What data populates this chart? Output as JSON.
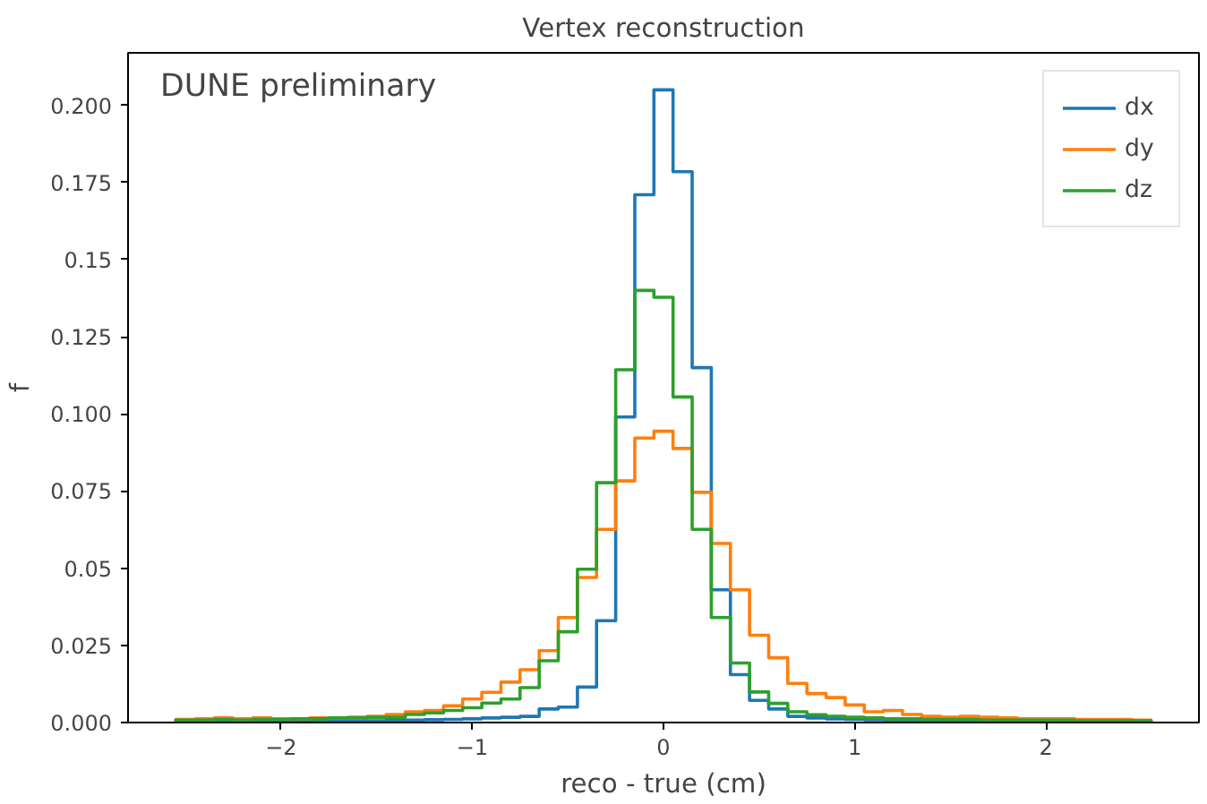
{
  "chart_data": {
    "type": "histogram",
    "title": "Vertex reconstruction",
    "xlabel": "reco - true (cm)",
    "ylabel": "f",
    "annotations": [
      "DUNE preliminary"
    ],
    "bins": [
      -2.55,
      -2.45,
      -2.35,
      -2.25,
      -2.15,
      -2.05,
      -1.95,
      -1.85,
      -1.75,
      -1.65,
      -1.55,
      -1.45,
      -1.35,
      -1.25,
      -1.15,
      -1.05,
      -0.95,
      -0.85,
      -0.75,
      -0.65,
      -0.55,
      -0.45,
      -0.35,
      -0.25,
      -0.15,
      -0.05,
      0.05,
      0.15,
      0.25,
      0.35,
      0.45,
      0.55,
      0.65,
      0.75,
      0.85,
      0.95,
      1.05,
      1.15,
      1.25,
      1.35,
      1.45,
      1.55,
      1.65,
      1.75,
      1.85,
      1.95,
      2.05,
      2.15,
      2.25,
      2.35,
      2.45,
      2.55
    ],
    "series": [
      {
        "name": "dx",
        "color": "#1f77b4",
        "values": [
          0.0002,
          0.0002,
          0.0002,
          0.0003,
          0.0003,
          0.0003,
          0.0004,
          0.0004,
          0.0005,
          0.0005,
          0.0006,
          0.0007,
          0.0008,
          0.0009,
          0.001,
          0.0012,
          0.0015,
          0.0017,
          0.002,
          0.0044,
          0.005,
          0.0115,
          0.033,
          0.099,
          0.171,
          0.205,
          0.1785,
          0.115,
          0.043,
          0.0155,
          0.0072,
          0.0044,
          0.002,
          0.0015,
          0.0012,
          0.001,
          0.0009,
          0.0008,
          0.0007,
          0.0006,
          0.0005,
          0.0005,
          0.0004,
          0.0004,
          0.0003,
          0.0003,
          0.0003,
          0.0002,
          0.0002,
          0.0002,
          0.0002
        ]
      },
      {
        "name": "dy",
        "color": "#ff7f0e",
        "values": [
          0.001,
          0.0012,
          0.0015,
          0.0012,
          0.0015,
          0.0012,
          0.0012,
          0.0015,
          0.0015,
          0.0017,
          0.002,
          0.0026,
          0.0035,
          0.0039,
          0.0054,
          0.0076,
          0.0098,
          0.0131,
          0.0171,
          0.0233,
          0.034,
          0.047,
          0.0626,
          0.0783,
          0.0922,
          0.0944,
          0.0888,
          0.0746,
          0.058,
          0.043,
          0.0283,
          0.021,
          0.0127,
          0.0094,
          0.0081,
          0.0057,
          0.0035,
          0.0039,
          0.0026,
          0.002,
          0.0017,
          0.002,
          0.0017,
          0.0015,
          0.0012,
          0.0012,
          0.0012,
          0.001,
          0.001,
          0.001,
          0.0008
        ]
      },
      {
        "name": "dz",
        "color": "#2ca02c",
        "values": [
          0.0008,
          0.0008,
          0.001,
          0.0008,
          0.001,
          0.001,
          0.0012,
          0.0012,
          0.0015,
          0.0015,
          0.0017,
          0.0017,
          0.0026,
          0.0031,
          0.0039,
          0.0048,
          0.0063,
          0.0076,
          0.0113,
          0.02,
          0.0294,
          0.0497,
          0.0777,
          0.1143,
          0.14,
          0.1378,
          0.1055,
          0.0626,
          0.034,
          0.0193,
          0.0099,
          0.0062,
          0.0035,
          0.0025,
          0.002,
          0.0017,
          0.0015,
          0.0012,
          0.0012,
          0.001,
          0.001,
          0.001,
          0.0008,
          0.0008,
          0.0008,
          0.0008,
          0.0008,
          0.0006,
          0.0006,
          0.0006,
          0.0006
        ]
      }
    ],
    "xlim": [
      -2.8,
      2.8
    ],
    "xticks": [
      {
        "value": -2,
        "label": "−2"
      },
      {
        "value": -1,
        "label": "−1"
      },
      0,
      1,
      2
    ],
    "ylim": [
      0,
      0.217
    ],
    "yticks": [
      {
        "value": 0,
        "label": "0.000"
      },
      0.025,
      0.05,
      0.075,
      {
        "value": 0.1,
        "label": "0.100"
      },
      0.125,
      0.15,
      0.175,
      {
        "value": 0.2,
        "label": "0.200"
      }
    ],
    "grid": false,
    "legend": "top right",
    "line_style": "solid"
  }
}
